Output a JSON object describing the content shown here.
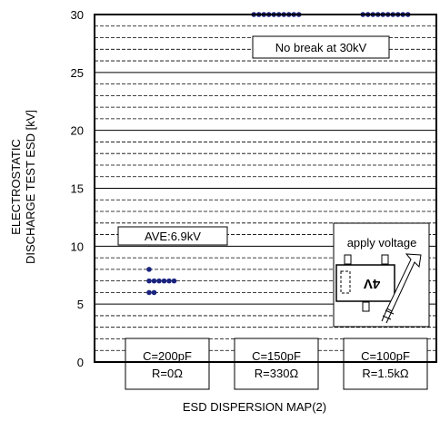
{
  "chart_data": {
    "type": "scatter",
    "title": "",
    "xlabel": "ESD DISPERSION MAP(2)",
    "ylabel_lines": [
      "ELECTROSTATIC",
      "DISCHARGE TEST ESD [kV]"
    ],
    "ylim": [
      0,
      30
    ],
    "yticks": [
      0,
      5,
      10,
      15,
      20,
      25,
      30
    ],
    "minor_step": 1,
    "grid": true,
    "categories": [
      {
        "lines": [
          "C=200pF",
          "R=0Ω"
        ]
      },
      {
        "lines": [
          "C=150pF",
          "R=330Ω"
        ]
      },
      {
        "lines": [
          "C=100pF",
          "R=1.5kΩ"
        ]
      }
    ],
    "series": [
      {
        "category": 0,
        "points": [
          {
            "y": 8.0,
            "count": 1
          },
          {
            "y": 7.0,
            "count": 6
          },
          {
            "y": 6.0,
            "count": 2
          }
        ]
      },
      {
        "category": 1,
        "points": [
          {
            "y": 30,
            "count": 10
          }
        ]
      },
      {
        "category": 2,
        "points": [
          {
            "y": 30,
            "count": 10
          }
        ]
      }
    ],
    "marker_color": "#1a237e",
    "annotations": {
      "no_break": "No break at 30kV",
      "average": "AVE:6.9kV"
    },
    "inset": {
      "label": "apply voltage",
      "chip_marking": "4V"
    }
  }
}
